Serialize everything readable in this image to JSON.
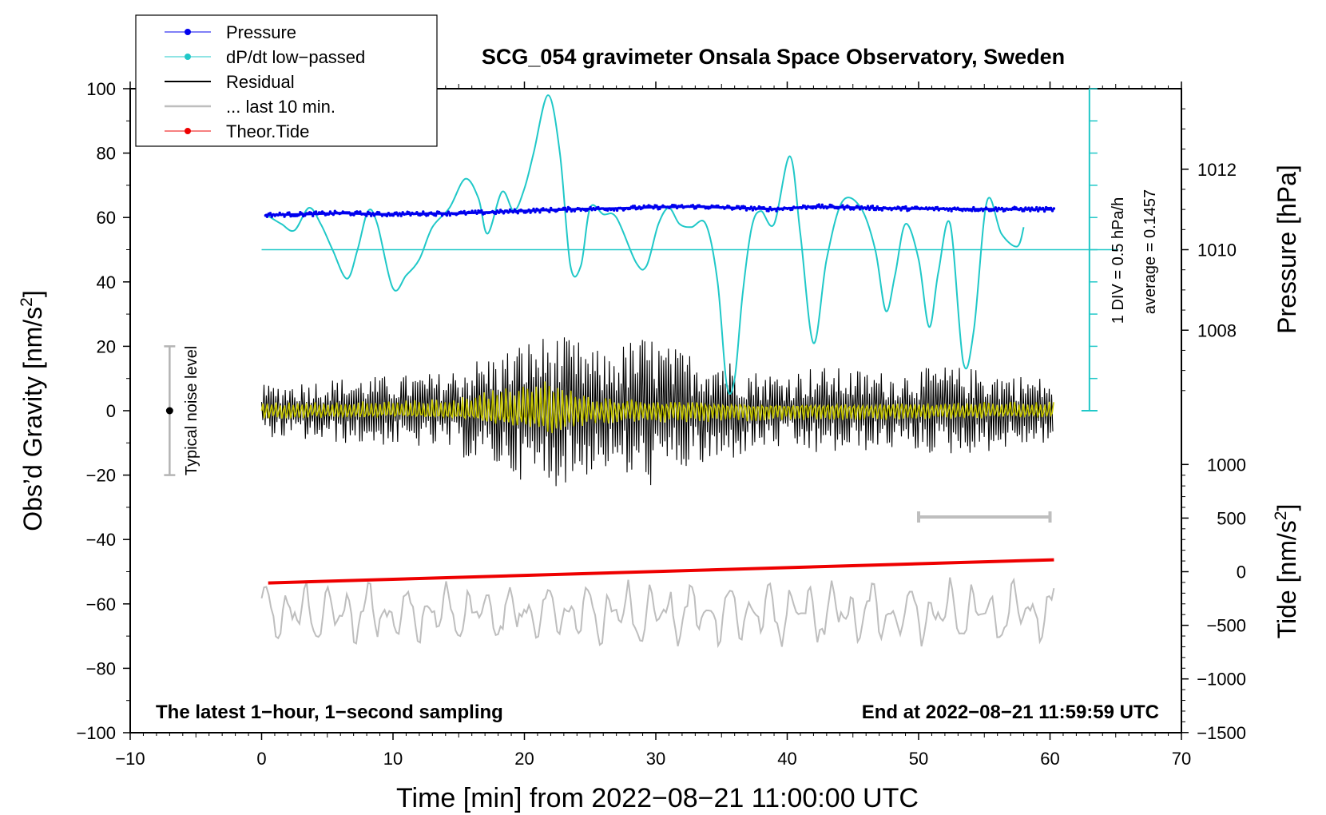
{
  "chart_data": {
    "type": "line",
    "title": "SCG_054 gravimeter Onsala Space Observatory, Sweden",
    "xlabel": "Time [min] from 2022−08−21 11:00:00 UTC",
    "ylabel_left_main": "Obs’d Gravity [nm/s",
    "ylabel_left_sup": "2",
    "ylabel_left_close": "]",
    "ylabel_right_pressure": "Pressure [hPa]",
    "ylabel_right_tide_main": "Tide [nm/s",
    "ylabel_right_tide_sup": "2",
    "ylabel_right_tide_close": "]",
    "xlim": [
      -10,
      70
    ],
    "ylim": [
      -100,
      100
    ],
    "x_ticks": [
      -10,
      0,
      10,
      20,
      30,
      40,
      50,
      60,
      70
    ],
    "x_tick_labels": [
      "−10",
      "0",
      "10",
      "20",
      "30",
      "40",
      "50",
      "60",
      "70"
    ],
    "y_ticks": [
      -100,
      -80,
      -60,
      -40,
      -20,
      0,
      20,
      40,
      60,
      80,
      100
    ],
    "y_tick_labels": [
      "−100",
      "−80",
      "−60",
      "−40",
      "−20",
      "0",
      "20",
      "40",
      "60",
      "80",
      "100"
    ],
    "pressure_axis": {
      "ticks": [
        1008,
        1010,
        1012
      ],
      "tick_labels": [
        "1008",
        "1010",
        "1012"
      ],
      "gravity_at_1010": 50,
      "gravity_per_hPa": 12.5
    },
    "tide_axis": {
      "ticks": [
        -1500,
        -1000,
        -500,
        0,
        500,
        1000
      ],
      "tick_labels": [
        "−1500",
        "−1000",
        "−500",
        "0",
        "500",
        "1000"
      ],
      "gravity_at_zero": -50,
      "gravity_per_unit": 0.0333
    },
    "dpdt_scale": {
      "label_div": "1 DIV = 0.5 hPa/h",
      "label_avg": "average = 0.1457",
      "x": 63,
      "y_top": 100,
      "y_bottom": 0,
      "y_zero": 50
    },
    "noise_bar": {
      "label": "Typical noise level",
      "x": -7,
      "y_low": -20,
      "y_high": 20,
      "y_center": 0
    },
    "last10_bar": {
      "x_start": 50,
      "x_end": 60,
      "y": -33
    },
    "annotation_left": "The latest 1−hour, 1−second sampling",
    "annotation_right": "End at 2022−08−21 11:59:59 UTC",
    "legend": {
      "position": "top-left",
      "entries": [
        {
          "label": "Pressure",
          "color": "#0000ee",
          "style": "line-dot"
        },
        {
          "label": "dP/dt low−passed",
          "color": "#20c8c8",
          "style": "line-dot"
        },
        {
          "label": "Residual",
          "color": "#000000",
          "style": "line"
        },
        {
          "label": "... last 10 min.",
          "color": "#bebebe",
          "style": "line"
        },
        {
          "label": "Theor.Tide",
          "color": "#ee0000",
          "style": "line-dot"
        }
      ]
    },
    "series": [
      {
        "name": "Pressure",
        "color": "#0000ee",
        "x": [
          0.3,
          3,
          6,
          9,
          12,
          15,
          18,
          21,
          24,
          27,
          30,
          33,
          36,
          39,
          42,
          45,
          48,
          51,
          54,
          57,
          60.3
        ],
        "y": [
          60.8,
          61.0,
          61.4,
          61.0,
          61.2,
          61.3,
          61.7,
          62.2,
          62.6,
          62.8,
          63.2,
          63.4,
          63.0,
          62.6,
          63.4,
          63.1,
          62.8,
          62.7,
          62.6,
          62.6,
          62.5
        ]
      },
      {
        "name": "dP/dt low−passed",
        "color": "#20c8c8",
        "x": [
          0.3,
          1.5,
          2.5,
          3.6,
          4.5,
          5.4,
          6.5,
          7.3,
          8.1,
          8.8,
          10,
          11,
          12,
          13,
          14.3,
          15.5,
          16.5,
          17.2,
          18.3,
          19.2,
          20.0,
          20.7,
          21.8,
          22.7,
          23.5,
          24.3,
          25.0,
          26.0,
          27.0,
          28.5,
          29.3,
          30.2,
          31.0,
          31.8,
          32.7,
          33.8,
          34.7,
          35.4,
          36.0,
          36.6,
          37.3,
          38.0,
          39.0,
          40.2,
          41.0,
          42.0,
          43.0,
          44.2,
          45.6,
          46.7,
          47.5,
          48.2,
          49.0,
          50.0,
          50.8,
          51.5,
          52.4,
          53.4,
          54.2,
          55.2,
          56.3,
          57.5,
          58.0
        ],
        "y": [
          61,
          58,
          56,
          63,
          58,
          50,
          41,
          50,
          62,
          58,
          38,
          42,
          47,
          57,
          63,
          72,
          66,
          55,
          68,
          62,
          69,
          80,
          98,
          80,
          45,
          45,
          63,
          61,
          60,
          46,
          45,
          58,
          63,
          58,
          57,
          58,
          40,
          8,
          10,
          36,
          57,
          62,
          58,
          79,
          55,
          21,
          47,
          65,
          63,
          50,
          31,
          42,
          58,
          47,
          26,
          43,
          58,
          15,
          25,
          65,
          55,
          51,
          57
        ]
      },
      {
        "name": "Residual",
        "color": "#000000",
        "envelope_x": [
          0,
          5,
          10,
          14,
          16,
          18,
          20,
          22,
          24,
          26,
          28,
          29.5,
          31,
          33,
          35,
          36,
          38,
          40,
          42,
          45,
          48,
          50,
          52,
          55,
          58,
          60.3
        ],
        "envelope_y": [
          8,
          10,
          11,
          12,
          16,
          18,
          22,
          24,
          22,
          18,
          22,
          24,
          20,
          18,
          18,
          15,
          12,
          12,
          14,
          13,
          12,
          13,
          14,
          13,
          11,
          10
        ]
      },
      {
        "name": "Residual (yellow overlay)",
        "color": "#c8c800",
        "envelope_x": [
          0,
          10,
          15,
          18,
          20,
          21.5,
          23,
          25,
          30,
          40,
          60.3
        ],
        "envelope_y": [
          3,
          3,
          4,
          7,
          8,
          10,
          8,
          5,
          4,
          3,
          3
        ]
      },
      {
        "name": "... last 10 min.",
        "color": "#bebebe",
        "baseline_y": -63,
        "amplitude_y": 9
      },
      {
        "name": "Theor.Tide",
        "color": "#ee0000",
        "x": [
          0.5,
          60.3
        ],
        "y": [
          -53.5,
          -46.3
        ]
      }
    ]
  }
}
